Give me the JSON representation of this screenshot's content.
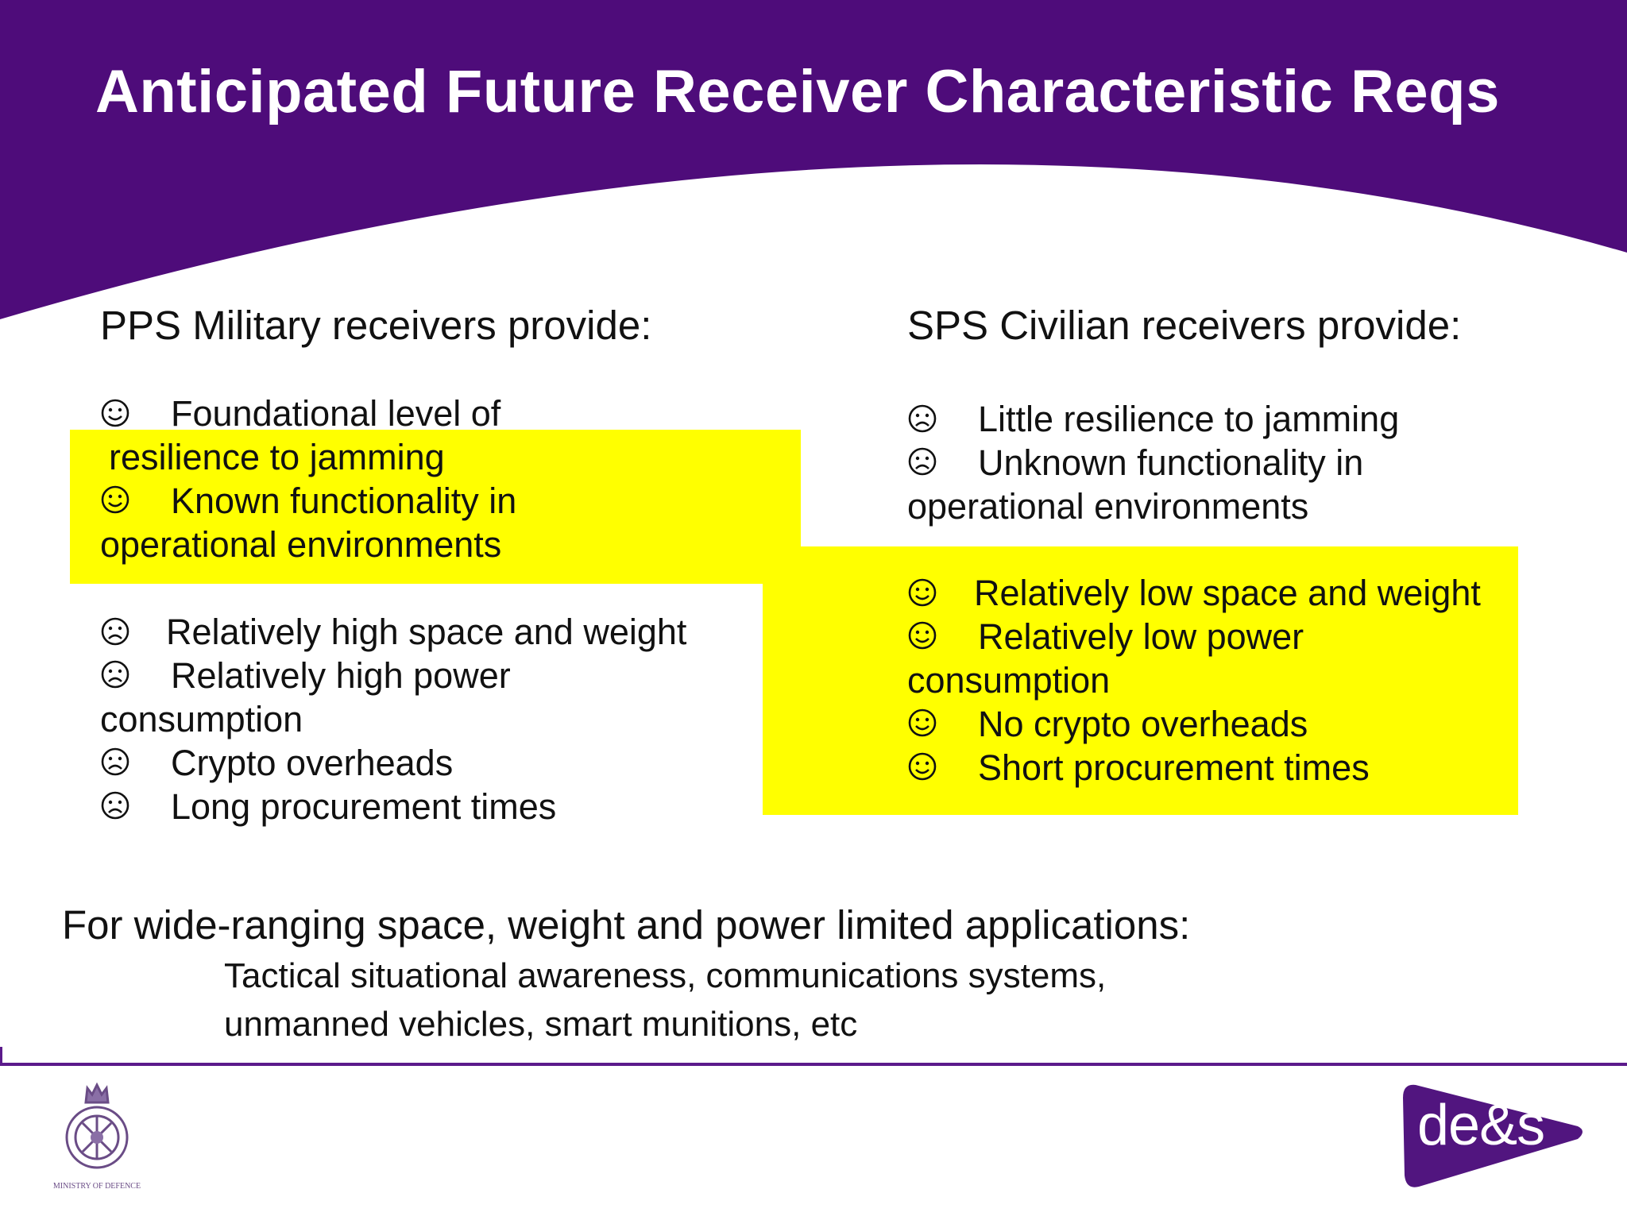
{
  "title": "Anticipated Future Receiver Characteristic Reqs",
  "colors": {
    "banner_purple": "#4e0c7a",
    "highlight_yellow": "#ffff00",
    "footer_rule": "#5b1a8b",
    "logo_purple": "#51157f"
  },
  "pps": {
    "heading": "PPS Military receivers provide:",
    "pros": [
      {
        "icon": "smiley-icon",
        "line1": "Foundational level of",
        "line2": "resilience to jamming"
      },
      {
        "icon": "smiley-icon",
        "line1": "Known functionality in",
        "line2": "operational environments"
      }
    ],
    "cons": [
      {
        "icon": "frown-icon",
        "line1": "Relatively high space and weight"
      },
      {
        "icon": "frown-icon",
        "line1": "Relatively high power",
        "line2": "consumption"
      },
      {
        "icon": "frown-icon",
        "line1": "Crypto overheads"
      },
      {
        "icon": "frown-icon",
        "line1": "Long procurement times"
      }
    ]
  },
  "sps": {
    "heading": "SPS Civilian receivers provide:",
    "cons": [
      {
        "icon": "frown-icon",
        "line1": "Little resilience to jamming"
      },
      {
        "icon": "frown-icon",
        "line1": "Unknown functionality in",
        "line2": "operational environments"
      }
    ],
    "pros": [
      {
        "icon": "smiley-icon",
        "line1": "Relatively low space and weight"
      },
      {
        "icon": "smiley-icon",
        "line1": "Relatively low power",
        "line2": "consumption"
      },
      {
        "icon": "smiley-icon",
        "line1": "No crypto overheads"
      },
      {
        "icon": "smiley-icon",
        "line1": "Short procurement times"
      }
    ]
  },
  "applications": {
    "heading": "For wide-ranging space, weight and power limited applications:",
    "line1": "Tactical situational awareness, communications systems,",
    "line2": "unmanned vehicles, smart munitions, etc"
  },
  "footer": {
    "mod_caption": "MINISTRY OF DEFENCE",
    "des_logo_text": "de&s"
  }
}
